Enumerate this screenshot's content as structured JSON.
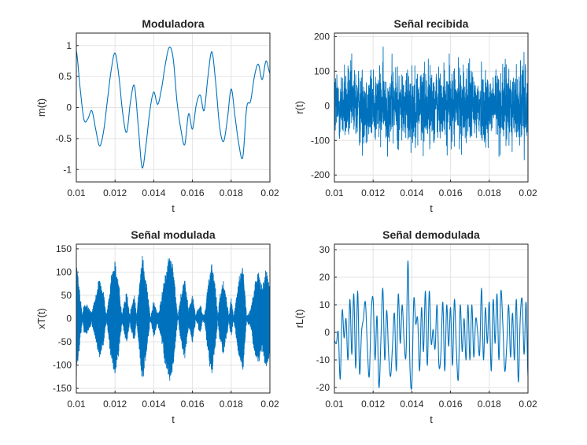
{
  "chart_data": [
    {
      "type": "line",
      "title": "Moduladora",
      "xlabel": "t",
      "ylabel": "m(t)",
      "xlim": [
        0.01,
        0.02
      ],
      "ylim": [
        -1.2,
        1.2
      ],
      "xticks": [
        "0.01",
        "0.012",
        "0.014",
        "0.016",
        "0.018",
        "0.02"
      ],
      "yticks": [
        "-1",
        "-0.5",
        "0",
        "0.5",
        "1"
      ],
      "ytick_values": [
        -1,
        -0.5,
        0,
        0.5,
        1
      ],
      "grid": true,
      "line_color": "#0072BD",
      "signal": "smooth",
      "x": [
        0.01,
        0.0102,
        0.0104,
        0.0106,
        0.0108,
        0.011,
        0.0112,
        0.0114,
        0.0116,
        0.0118,
        0.012,
        0.0122,
        0.0124,
        0.0126,
        0.0128,
        0.013,
        0.0132,
        0.0134,
        0.0136,
        0.0138,
        0.014,
        0.0142,
        0.0144,
        0.0146,
        0.0148,
        0.015,
        0.0152,
        0.0154,
        0.0156,
        0.0158,
        0.016,
        0.0162,
        0.0164,
        0.0166,
        0.0168,
        0.017,
        0.0172,
        0.0174,
        0.0176,
        0.0178,
        0.018,
        0.0182,
        0.0184,
        0.0186,
        0.0188,
        0.019,
        0.0192,
        0.0194,
        0.0196,
        0.0198,
        0.02
      ],
      "values": [
        0.92,
        0.3,
        -0.2,
        -0.18,
        -0.05,
        -0.35,
        -0.62,
        -0.4,
        0.1,
        0.6,
        0.88,
        0.5,
        -0.1,
        -0.4,
        0.1,
        0.35,
        -0.3,
        -0.97,
        -0.6,
        -0.05,
        0.25,
        0.05,
        0.3,
        0.7,
        0.97,
        0.8,
        0.1,
        -0.35,
        -0.6,
        -0.1,
        -0.35,
        0.05,
        0.2,
        -0.05,
        0.5,
        0.9,
        0.4,
        -0.3,
        -0.55,
        -0.2,
        0.3,
        -0.15,
        -0.6,
        -0.8,
        0.0,
        0.1,
        0.5,
        0.7,
        0.45,
        0.75,
        0.55
      ]
    },
    {
      "type": "line",
      "title": "Señal recibida",
      "xlabel": "t",
      "ylabel": "r(t)",
      "xlim": [
        0.01,
        0.02
      ],
      "ylim": [
        -220,
        210
      ],
      "xticks": [
        "0.01",
        "0.012",
        "0.014",
        "0.016",
        "0.018",
        "0.02"
      ],
      "yticks": [
        "-200",
        "-100",
        "0",
        "100",
        "200"
      ],
      "ytick_values": [
        -200,
        -100,
        0,
        100,
        200
      ],
      "grid": true,
      "line_color": "#0072BD",
      "signal": "noise",
      "amplitude_range": [
        -180,
        172
      ]
    },
    {
      "type": "line",
      "title": "Señal modulada",
      "xlabel": "t",
      "ylabel": "xT(t)",
      "xlim": [
        0.01,
        0.02
      ],
      "ylim": [
        -160,
        160
      ],
      "xticks": [
        "0.01",
        "0.012",
        "0.014",
        "0.016",
        "0.018",
        "0.02"
      ],
      "yticks": [
        "-150",
        "-100",
        "-50",
        "0",
        "50",
        "100",
        "150"
      ],
      "ytick_values": [
        -150,
        -100,
        -50,
        0,
        50,
        100,
        150
      ],
      "grid": true,
      "line_color": "#0072BD",
      "signal": "modulated",
      "carrier_amplitude": 140
    },
    {
      "type": "line",
      "title": "Señal demodulada",
      "xlabel": "t",
      "ylabel": "rL(t)",
      "xlim": [
        0.01,
        0.02
      ],
      "ylim": [
        -22,
        32
      ],
      "xticks": [
        "0.01",
        "0.012",
        "0.014",
        "0.016",
        "0.018",
        "0.02"
      ],
      "yticks": [
        "-20",
        "-10",
        "0",
        "10",
        "20",
        "30"
      ],
      "ytick_values": [
        -20,
        -10,
        0,
        10,
        20,
        30
      ],
      "grid": true,
      "line_color": "#0072BD",
      "signal": "smooth",
      "x": [
        0.01,
        0.0101,
        0.0102,
        0.0103,
        0.0104,
        0.0105,
        0.0106,
        0.0107,
        0.0108,
        0.0109,
        0.011,
        0.0111,
        0.0112,
        0.0113,
        0.0114,
        0.0115,
        0.0116,
        0.0117,
        0.0118,
        0.0119,
        0.012,
        0.0121,
        0.0122,
        0.0123,
        0.0124,
        0.0125,
        0.0126,
        0.0127,
        0.0128,
        0.0129,
        0.013,
        0.0131,
        0.0132,
        0.0133,
        0.0134,
        0.0135,
        0.0136,
        0.0137,
        0.0138,
        0.0139,
        0.014,
        0.0141,
        0.0142,
        0.0143,
        0.0144,
        0.0145,
        0.0146,
        0.0147,
        0.0148,
        0.0149,
        0.015,
        0.0151,
        0.0152,
        0.0153,
        0.0154,
        0.0155,
        0.0156,
        0.0157,
        0.0158,
        0.0159,
        0.016,
        0.0161,
        0.0162,
        0.0163,
        0.0164,
        0.0165,
        0.0166,
        0.0167,
        0.0168,
        0.0169,
        0.017,
        0.0171,
        0.0172,
        0.0173,
        0.0174,
        0.0175,
        0.0176,
        0.0177,
        0.0178,
        0.0179,
        0.018,
        0.0181,
        0.0182,
        0.0183,
        0.0184,
        0.0185,
        0.0186,
        0.0187,
        0.0188,
        0.0189,
        0.019,
        0.0191,
        0.0192,
        0.0193,
        0.0194,
        0.0195,
        0.0196,
        0.0197,
        0.0198,
        0.0199,
        0.02
      ],
      "values": [
        -3,
        -4,
        0,
        -17,
        8,
        -2,
        5,
        -10,
        12,
        -8,
        14,
        -13,
        15,
        -15,
        0,
        5,
        11,
        -5,
        -16,
        7,
        12,
        -10,
        6,
        -20,
        -3,
        16,
        -10,
        8,
        -8,
        -16,
        -5,
        7,
        -14,
        14,
        -4,
        10,
        -3,
        -8,
        26,
        -12,
        -19,
        12,
        3,
        5,
        -14,
        9,
        -7,
        15,
        -12,
        15,
        -4,
        1,
        -6,
        10,
        -12,
        -8,
        11,
        -14,
        10,
        -5,
        9,
        -12,
        12,
        -6,
        -17,
        10,
        -7,
        5,
        -10,
        10,
        -10,
        10,
        -9,
        5,
        0,
        -8,
        16,
        -10,
        9,
        -4,
        11,
        -14,
        12,
        -4,
        14,
        -10,
        15,
        3,
        -14,
        -5,
        10,
        -9,
        7,
        -10,
        12,
        -18,
        5,
        12,
        -8,
        11,
        -16
      ]
    }
  ]
}
